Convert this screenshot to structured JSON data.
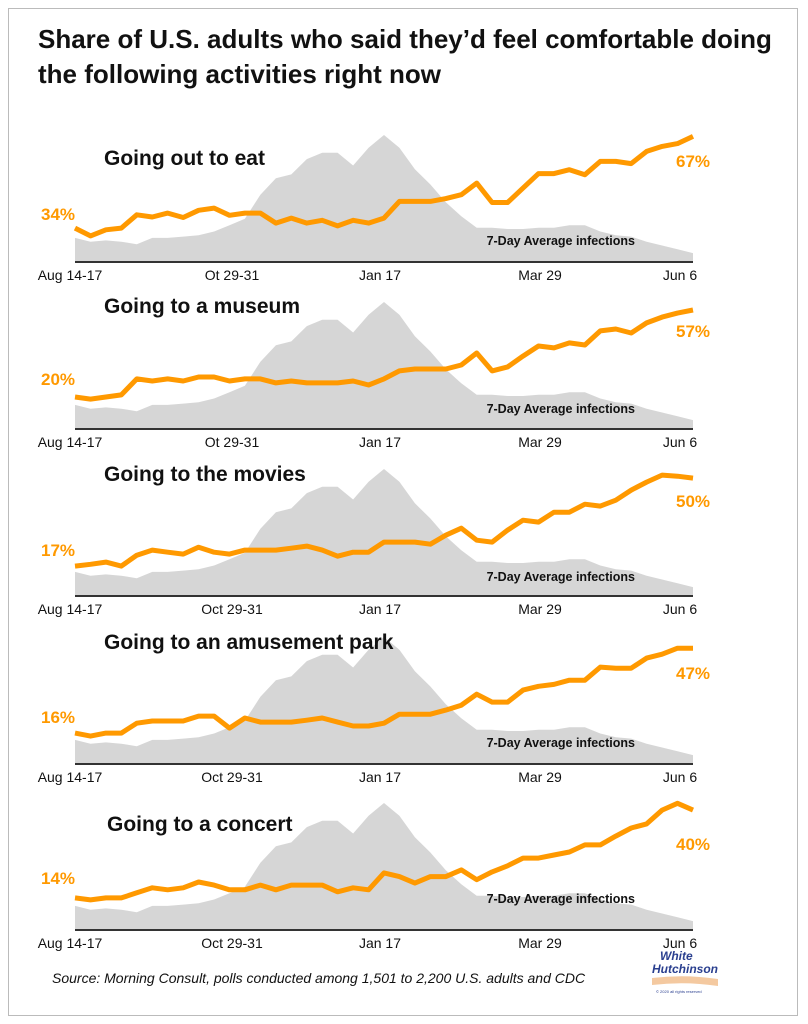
{
  "title": "Share of U.S. adults who said they’d feel comfortable doing the following activities right now",
  "source": "Source: Morning Consult, polls conducted among 1,501 to 2,200 U.S. adults and CDC",
  "logo": {
    "line1": "White",
    "line2": "Hutchinson",
    "tagline": "LEISURE & LEARNING GROUP",
    "copyright": "© 2020 all rights reserved"
  },
  "colors": {
    "comfort_line": "#FF9900",
    "infections_area": "#D6D6D6",
    "axis": "#333333"
  },
  "chart_data": [
    {
      "type": "line",
      "title": "Going out to eat",
      "area_label": "7-Day Average infections",
      "x_ticks": [
        "Aug 14-17",
        "Ot 29-31",
        "Jan 17",
        "Mar 29",
        "Jun 6"
      ],
      "start_label": "34%",
      "end_label": "67%",
      "ylim": [
        21.8,
        67.5
      ],
      "values": [
        34,
        31.2,
        33.4,
        34,
        38.8,
        38,
        39.4,
        37.8,
        40.4,
        41.2,
        38.6,
        39.4,
        39.4,
        35.8,
        37.6,
        35.8,
        36.8,
        34.8,
        36.8,
        35.8,
        37.6,
        43.6,
        43.6,
        43.6,
        44.6,
        46,
        50.2,
        43.2,
        43.2,
        48.4,
        53.6,
        53.6,
        55,
        53.2,
        58,
        58,
        57.2,
        61.6,
        63.4,
        64.4,
        67
      ]
    },
    {
      "type": "line",
      "title": "Going to a museum",
      "area_label": "7-Day Average infections",
      "x_ticks": [
        "Aug 14-17",
        "Ot 29-31",
        "Jan 17",
        "Mar 29",
        "Jun 6"
      ],
      "start_label": "20%",
      "end_label": "57%",
      "ylim": [
        6.4,
        60.4
      ],
      "values": [
        20,
        19.1,
        20,
        20.9,
        27.7,
        26.8,
        27.7,
        26.8,
        28.5,
        28.5,
        26.8,
        27.7,
        27.7,
        26,
        26.8,
        26,
        26,
        26,
        26.8,
        25.1,
        27.7,
        31.1,
        31.9,
        31.9,
        31.9,
        33.6,
        38.7,
        31.1,
        32.8,
        37.4,
        41.7,
        40.9,
        43,
        42.1,
        48.1,
        48.9,
        47.2,
        51.5,
        54,
        55.7,
        57
      ]
    },
    {
      "type": "line",
      "title": "Going to the movies",
      "area_label": "7-Day Average infections",
      "x_ticks": [
        "Aug 14-17",
        "Oct 29-31",
        "Jan 17",
        "Mar 29",
        "Jun 6"
      ],
      "start_label": "17%",
      "end_label": "50%",
      "ylim": [
        5.8,
        53.4
      ],
      "values": [
        17,
        17.7,
        18.5,
        17,
        21.1,
        23,
        22.2,
        21.5,
        24.1,
        22.2,
        21.5,
        23,
        23,
        23,
        23.7,
        24.5,
        23,
        20.7,
        22.2,
        22.2,
        26,
        26,
        26,
        25.2,
        28.6,
        31.2,
        26.7,
        26,
        30.5,
        34.2,
        33.5,
        37.2,
        37.2,
        40.2,
        39.5,
        41.7,
        45.5,
        48.5,
        51.1,
        50.7,
        50
      ]
    },
    {
      "type": "line",
      "title": "Going to an amusement park",
      "area_label": "7-Day Average infections",
      "x_ticks": [
        "Aug 14-17",
        "Oct 29-31",
        "Jan 17",
        "Mar 29",
        "Jun 6"
      ],
      "start_label": "16%",
      "end_label": "47%",
      "ylim": [
        4.7,
        51.1
      ],
      "values": [
        16,
        14.9,
        16,
        16,
        19.6,
        20.4,
        20.4,
        20.4,
        22.2,
        22.2,
        17.8,
        21.5,
        20,
        20,
        20,
        20.7,
        21.5,
        20,
        18.6,
        18.6,
        19.6,
        22.9,
        22.9,
        22.9,
        24.4,
        26.2,
        30.2,
        27.3,
        27.3,
        31.7,
        33.1,
        33.8,
        35.3,
        35.3,
        40.1,
        39.7,
        39.7,
        43.4,
        44.8,
        47,
        47
      ]
    },
    {
      "type": "line",
      "title": "Going to a concert",
      "area_label": "7-Day Average infections",
      "x_ticks": [
        "Aug 14-17",
        "Oct 29-31",
        "Jan 17",
        "Mar 29",
        "Jun 6"
      ],
      "start_label": "14%",
      "end_label": "40%",
      "ylim": [
        4.5,
        42.1
      ],
      "values": [
        14,
        13.4,
        14,
        14,
        15.5,
        17,
        16.4,
        17,
        18.7,
        17.8,
        16.4,
        16.4,
        17.8,
        16.4,
        17.8,
        17.8,
        17.8,
        15.8,
        17,
        16.4,
        21.4,
        20.3,
        18.4,
        20.3,
        20.3,
        22.3,
        19.4,
        21.7,
        23.5,
        25.8,
        25.8,
        26.7,
        27.6,
        29.7,
        29.7,
        32.3,
        34.7,
        35.9,
        40,
        42,
        40
      ]
    }
  ],
  "infections_shape": [
    19,
    16,
    17,
    16,
    14,
    19,
    19,
    20,
    21,
    24,
    29,
    34,
    53,
    66,
    69,
    81,
    86,
    86,
    76,
    90,
    100,
    90,
    73,
    61,
    47,
    36,
    27,
    27,
    26,
    26,
    27,
    27,
    29,
    29,
    24,
    21,
    20,
    16,
    13,
    10,
    7
  ]
}
